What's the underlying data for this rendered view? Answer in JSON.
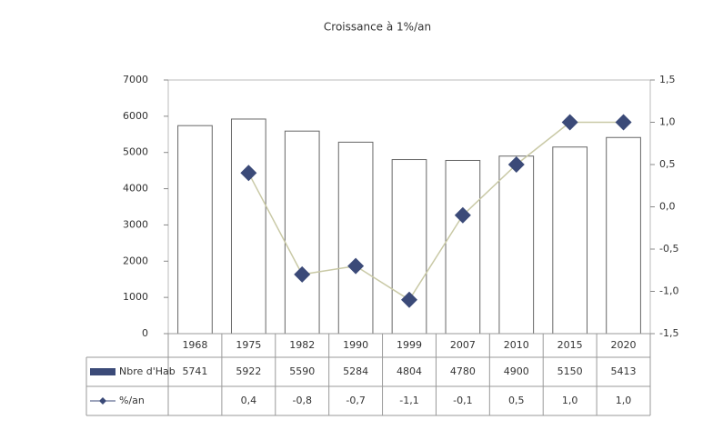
{
  "chart_data": {
    "type": "bar-line-table",
    "title": "Croissance à 1%/an",
    "categories": [
      "1968",
      "1975",
      "1982",
      "1990",
      "1999",
      "2007",
      "2010",
      "2015",
      "2020"
    ],
    "series": [
      {
        "name": "Nbre d'Hab",
        "color": "#ffffff",
        "values": [
          5741,
          5922,
          5590,
          5284,
          4804,
          4780,
          4900,
          5150,
          5413
        ]
      },
      {
        "name": "%/an",
        "color": "#c9c9a6",
        "marker_color": "#3b4a78",
        "axis": "y2",
        "values": [
          null,
          0.4,
          -0.8,
          -0.7,
          -1.1,
          -0.1,
          0.5,
          1.0,
          1.0
        ],
        "value_labels": [
          null,
          "0,4",
          "-0,8",
          "-0,7",
          "-1,1",
          "-0,1",
          "0,5",
          "1,0",
          "1,0"
        ]
      }
    ],
    "ylim": [
      0,
      7000
    ],
    "yticks": [
      0,
      1000,
      2000,
      3000,
      4000,
      5000,
      6000,
      7000
    ],
    "y2lim": [
      -1.5,
      1.5
    ],
    "y2ticks": [
      {
        "value": -1.5,
        "label": "-1,5"
      },
      {
        "value": -1.0,
        "label": "-1,0"
      },
      {
        "value": -0.5,
        "label": "-0,5"
      },
      {
        "value": 0.0,
        "label": "0,0"
      },
      {
        "value": 0.5,
        "label": "0,5"
      },
      {
        "value": 1.0,
        "label": "1,0"
      },
      {
        "value": 1.5,
        "label": "1,5"
      }
    ]
  }
}
